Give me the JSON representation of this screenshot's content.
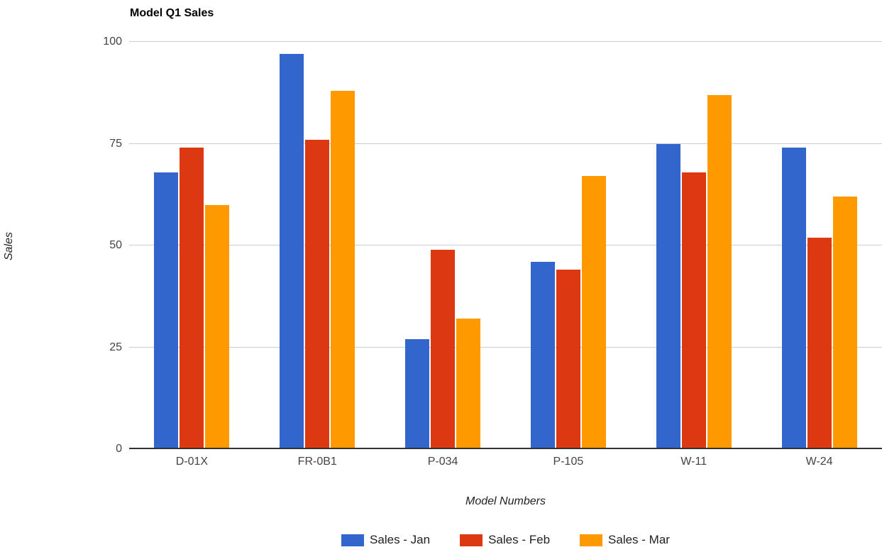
{
  "chart_data": {
    "type": "bar",
    "title": "Model Q1 Sales",
    "xlabel": "Model Numbers",
    "ylabel": "Sales",
    "categories": [
      "D-01X",
      "FR-0B1",
      "P-034",
      "P-105",
      "W-11",
      "W-24"
    ],
    "series": [
      {
        "name": "Sales - Jan",
        "color": "#3366CC",
        "values": [
          68,
          97,
          27,
          46,
          75,
          74
        ]
      },
      {
        "name": "Sales - Feb",
        "color": "#DC3912",
        "values": [
          74,
          76,
          49,
          44,
          68,
          52
        ]
      },
      {
        "name": "Sales - Mar",
        "color": "#FF9900",
        "values": [
          60,
          88,
          32,
          67,
          87,
          62
        ]
      }
    ],
    "ylim": [
      0,
      100
    ],
    "yticks": [
      0,
      25,
      50,
      75,
      100
    ],
    "grid": true,
    "legend_position": "bottom",
    "colors": {
      "background": "#FFFFFF",
      "gridline": "#CCCCCC",
      "baseline": "#333333",
      "title_text": "#000000",
      "tick_text": "#444444",
      "axis_title_text": "#222222",
      "legend_text": "#222222"
    }
  }
}
